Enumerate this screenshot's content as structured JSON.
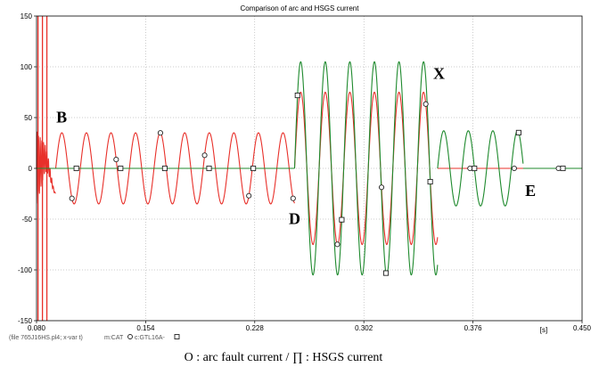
{
  "chart_data": {
    "type": "line",
    "title": "Comparison of arc and HSGS current",
    "x_unit": "[s]",
    "xlim": [
      0.08,
      0.45
    ],
    "ylim": [
      -150,
      150
    ],
    "x_ticks": [
      "0.080",
      "0.154",
      "0.228",
      "0.302",
      "0.376",
      "0.450"
    ],
    "y_ticks": [
      "150",
      "100",
      "50",
      "0",
      "-50",
      "-100",
      "-150"
    ],
    "grid": true,
    "file_label": "(file 765J16HS.pl4; x-var t)",
    "series": [
      {
        "name": "m:CAT",
        "color": "#e8302a",
        "marker": "circle",
        "segments": [
          {
            "t0": 0.08,
            "t1": 0.093,
            "shape": "transient"
          },
          {
            "t0": 0.093,
            "t1": 0.255,
            "shape": "sine",
            "amplitude": 35,
            "frequency_hz": 60
          },
          {
            "t0": 0.255,
            "t1": 0.352,
            "shape": "sine",
            "amplitude": 75,
            "frequency_hz": 60
          },
          {
            "t0": 0.352,
            "t1": 0.45,
            "shape": "zero"
          }
        ]
      },
      {
        "name": "c:GTL16A-",
        "color": "#1f8a2e",
        "marker": "square",
        "segments": [
          {
            "t0": 0.08,
            "t1": 0.255,
            "shape": "zero"
          },
          {
            "t0": 0.255,
            "t1": 0.352,
            "shape": "sine",
            "amplitude": 105,
            "frequency_hz": 60
          },
          {
            "t0": 0.352,
            "t1": 0.41,
            "shape": "sine",
            "amplitude": 37,
            "frequency_hz": 60
          },
          {
            "t0": 0.41,
            "t1": 0.45,
            "shape": "zero"
          }
        ]
      }
    ],
    "annotations": [
      {
        "text": "B",
        "x": 0.097,
        "y": 45
      },
      {
        "text": "D",
        "x": 0.255,
        "y": -55
      },
      {
        "text": "X",
        "x": 0.353,
        "y": 88
      },
      {
        "text": "E",
        "x": 0.415,
        "y": -27
      }
    ]
  },
  "footer": {
    "legend_text": "O : arc fault current    /    ∏ : HSGS current"
  }
}
